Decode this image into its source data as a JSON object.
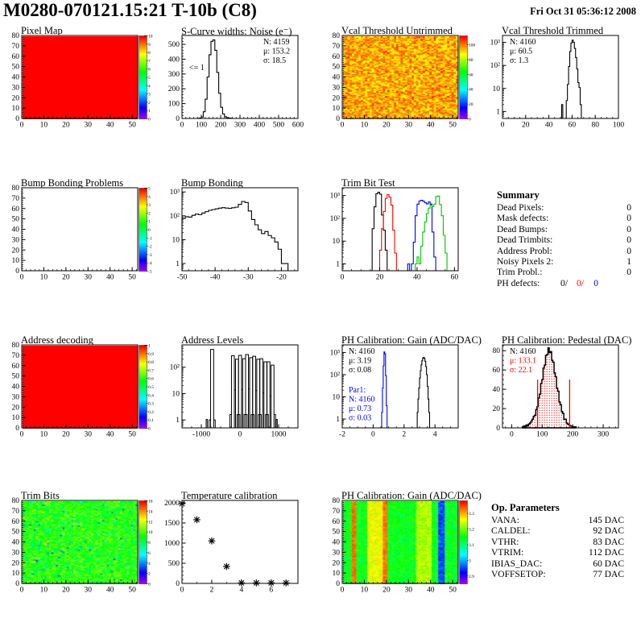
{
  "page": {
    "title": "M0280-070121.15:21 T-10b (C8)",
    "date": "Fri Oct 31 05:36:12 2008"
  },
  "colors": {
    "black": "#000000",
    "red": "#ff0000",
    "blue": "#0000ff",
    "green": "#00c300"
  },
  "summary": {
    "title": "Summary",
    "rows": [
      {
        "label": "Dead Pixels:",
        "value": "0"
      },
      {
        "label": "Mask defects:",
        "value": "0"
      },
      {
        "label": "Dead Bumps:",
        "value": "0"
      },
      {
        "label": "Dead Trimbits:",
        "value": "0"
      },
      {
        "label": "Address Probl:",
        "value": "0"
      },
      {
        "label": "Noisy Pixels 2:",
        "value": "1"
      },
      {
        "label": "Trim Probl.:",
        "value": "0"
      }
    ],
    "ph_defects": {
      "label": "PH defects:",
      "parts": [
        {
          "text": "0/",
          "color": "#000000"
        },
        {
          "text": "0/",
          "color": "#ff0000"
        },
        {
          "text": "0",
          "color": "#0000ff"
        }
      ]
    }
  },
  "op_parameters": {
    "title": "Op. Parameters",
    "rows": [
      {
        "label": "VANA:",
        "value": "145 DAC"
      },
      {
        "label": "CALDEL:",
        "value": "92 DAC"
      },
      {
        "label": "VTHR:",
        "value": "83 DAC"
      },
      {
        "label": "VTRIM:",
        "value": "112 DAC"
      },
      {
        "label": "IBIAS_DAC:",
        "value": "60 DAC"
      },
      {
        "label": "VOFFSETOP:",
        "value": "77 DAC"
      }
    ]
  },
  "chart_data": [
    {
      "id": "pixel_map",
      "type": "heatmap",
      "title": "Pixel Map",
      "x": {
        "min": 0,
        "max": 52.5,
        "ticks": [
          0,
          10,
          20,
          30,
          40,
          50
        ],
        "minor": 2
      },
      "y": {
        "min": 0,
        "max": 80,
        "ticks": [
          0,
          10,
          20,
          30,
          40,
          50,
          60,
          70,
          80
        ],
        "minor": 2
      },
      "z": {
        "min": 0,
        "max": 10,
        "ticks": [
          "0",
          "1",
          "2",
          "3",
          "4",
          "5",
          "6",
          "7",
          "8",
          "9",
          "10"
        ]
      },
      "fill": {
        "mode": "uniform",
        "value": 10
      }
    },
    {
      "id": "scurve_noise",
      "type": "hist",
      "title": "S-Curve widths: Noise (e⁻)",
      "x": {
        "min": 0,
        "max": 600,
        "ticks": [
          0,
          100,
          200,
          300,
          400,
          500,
          600
        ],
        "minor": 20
      },
      "y": {
        "min": 0,
        "max": 560,
        "ticks": [
          0,
          100,
          200,
          300,
          400,
          500
        ],
        "minor": 20
      },
      "series": [
        {
          "color": "#000000",
          "x0": 80,
          "bw": 10,
          "counts": [
            1,
            3,
            10,
            45,
            130,
            280,
            430,
            520,
            530,
            460,
            310,
            170,
            75,
            30,
            12,
            5,
            3,
            2
          ]
        }
      ],
      "stats": [
        {
          "x": 128,
          "y": 12,
          "dy": 11.5,
          "lines": [
            {
              "text": "N: 4159",
              "color": "#000000"
            },
            {
              "text": "μ: 153.2",
              "color": "#000000"
            },
            {
              "text": "σ: 18.5",
              "color": "#000000"
            }
          ]
        }
      ],
      "notes": [
        {
          "x": 36,
          "y": 44,
          "text": "<= 1",
          "color": "#000000"
        }
      ]
    },
    {
      "id": "vcal_untrimmed",
      "type": "heatmap",
      "title": "Vcal Threshold Untrimmed",
      "x": {
        "min": 0,
        "max": 52.5,
        "ticks": [
          0,
          10,
          20,
          30,
          40,
          50
        ],
        "minor": 2
      },
      "y": {
        "min": 0,
        "max": 80,
        "ticks": [
          0,
          10,
          20,
          30,
          40,
          50,
          60,
          70,
          80
        ],
        "minor": 2
      },
      "z": {
        "min": 0,
        "max": 112,
        "ticks": [
          "0",
          "20",
          "40",
          "60",
          "80",
          "100"
        ]
      },
      "fill": {
        "mode": "noise",
        "mean": 96,
        "sd": 11,
        "outliers": [
          {
            "p": 0.02,
            "lo": 108,
            "hi": 114
          },
          {
            "p": 0.008,
            "lo": 70,
            "hi": 80
          }
        ]
      }
    },
    {
      "id": "vcal_trimmed",
      "type": "hist",
      "title": "Vcal Threshold Trimmed",
      "x": {
        "min": 0,
        "max": 100,
        "ticks": [
          0,
          20,
          40,
          60,
          80,
          100
        ],
        "minor": 5
      },
      "y": {
        "log": true,
        "min": 0.5,
        "max": 2000
      },
      "series": [
        {
          "color": "#000000",
          "x0": 51,
          "bw": 1,
          "counts": [
            2,
            0,
            0,
            0,
            3,
            15,
            90,
            400,
            950,
            1250,
            1000,
            550,
            220,
            70,
            18,
            11,
            2
          ]
        }
      ],
      "stats": [
        {
          "x": 36,
          "y": 12,
          "dy": 11.5,
          "lines": [
            {
              "text": "N: 4160",
              "color": "#000000"
            },
            {
              "text": "μ: 60.5",
              "color": "#000000"
            },
            {
              "text": "σ:  1.3",
              "color": "#000000"
            }
          ]
        }
      ]
    },
    {
      "id": "bump_problems",
      "type": "heatmap",
      "title": "Bump Bonding Problems",
      "x": {
        "min": 0,
        "max": 52.5,
        "ticks": [
          0,
          10,
          20,
          30,
          40,
          50
        ],
        "minor": 2
      },
      "y": {
        "min": 0,
        "max": 80,
        "ticks": [
          0,
          10,
          20,
          30,
          40,
          50,
          60,
          70,
          80
        ],
        "minor": 2
      },
      "z": {
        "min": -5,
        "max": 5,
        "ticks": [
          "-5",
          "-4",
          "-3",
          "-2",
          "-1",
          "0",
          "1",
          "2",
          "3",
          "4",
          "5"
        ]
      },
      "fill": {
        "mode": "none"
      }
    },
    {
      "id": "bump_bonding",
      "type": "hist",
      "title": "Bump Bonding",
      "x": {
        "min": -50,
        "max": -15,
        "ticks": [
          -50,
          -40,
          -30,
          -20
        ],
        "minor": 2
      },
      "y": {
        "log": true,
        "min": 0.5,
        "max": 1500
      },
      "series": [
        {
          "color": "#000000",
          "x0": -50,
          "bw": 1,
          "counts": [
            78,
            92,
            88,
            105,
            118,
            112,
            132,
            150,
            170,
            182,
            196,
            210,
            220,
            212,
            205,
            218,
            230,
            300,
            400,
            360,
            160,
            70,
            42,
            26,
            18,
            22,
            15,
            12,
            8,
            4,
            1,
            1
          ]
        }
      ]
    },
    {
      "id": "trim_bit_test",
      "type": "hist",
      "title": "Trim Bit Test",
      "x": {
        "min": 0,
        "max": 62,
        "ticks": [
          0,
          20,
          40,
          60
        ],
        "minor": 5
      },
      "y": {
        "log": true,
        "min": 0.5,
        "max": 2200
      },
      "series": [
        {
          "color": "#000000",
          "x0": 16,
          "bw": 1,
          "baseline": true,
          "counts": [
            35,
            320,
            1200,
            1400,
            1150,
            140,
            30,
            4
          ]
        },
        {
          "color": "#ff0000",
          "x0": 20,
          "bw": 1,
          "baseline": true,
          "counts": [
            4,
            35,
            200,
            750,
            1100,
            850,
            380,
            30,
            3
          ]
        },
        {
          "color": "#0000ff",
          "x0": 35,
          "bw": 1,
          "baseline": true,
          "counts": [
            1,
            0,
            1,
            9,
            130,
            420,
            580,
            620,
            560,
            480,
            430,
            520,
            420,
            25,
            2
          ]
        },
        {
          "color": "#00c300",
          "x0": 39,
          "bw": 1,
          "baseline": true,
          "counts": [
            1,
            2,
            1,
            6,
            25,
            70,
            160,
            280,
            380,
            330,
            420,
            900,
            950,
            400,
            130,
            18,
            3
          ]
        }
      ]
    },
    {
      "id": "address_decoding",
      "type": "heatmap",
      "title": "Address decoding",
      "x": {
        "min": 0,
        "max": 52.5,
        "ticks": [
          0,
          10,
          20,
          30,
          40,
          50
        ],
        "minor": 2
      },
      "y": {
        "min": 0,
        "max": 80,
        "ticks": [
          0,
          10,
          20,
          30,
          40,
          50,
          60,
          70,
          80
        ],
        "minor": 2
      },
      "z": {
        "min": 0,
        "max": 1,
        "ticks": [
          "0",
          "0.1",
          "0.2",
          "0.3",
          "0.4",
          "0.5",
          "0.6",
          "0.7",
          "0.8",
          "0.9",
          "1"
        ]
      },
      "fill": {
        "mode": "uniform",
        "value": 1
      }
    },
    {
      "id": "address_levels",
      "type": "spikes",
      "title": "Address Levels",
      "x": {
        "min": -1500,
        "max": 1500,
        "ticks": [
          -1000,
          0,
          1000
        ],
        "minor": 250
      },
      "y": {
        "log": true,
        "min": 0.5,
        "max": 700
      },
      "groups": [
        {
          "c": -720,
          "h1": 470,
          "h2": 0
        },
        {
          "c": -130,
          "h1": 270,
          "h2": 200
        },
        {
          "c": 55,
          "h1": 280,
          "h2": 210
        },
        {
          "c": 235,
          "h1": 300,
          "h2": 230
        },
        {
          "c": 420,
          "h1": 260,
          "h2": 200
        },
        {
          "c": 605,
          "h1": 210,
          "h2": 160
        },
        {
          "c": 790,
          "h1": 160,
          "h2": 120
        }
      ],
      "extras": [
        {
          "x": -860,
          "w": 30,
          "h": 1.05
        },
        {
          "x": 950,
          "w": 30,
          "h": 1.05
        }
      ]
    },
    {
      "id": "ph_gain_hist",
      "type": "hist",
      "title": "PH Calibration: Gain (ADC/DAC)",
      "x": {
        "min": -2,
        "max": 5.5,
        "ticks": [
          -2,
          0,
          2,
          4
        ],
        "minor": 0.5
      },
      "y": {
        "log": true,
        "min": 0.4,
        "max": 2200
      },
      "series": [
        {
          "color": "#000000",
          "x0": 2.85,
          "bw": 0.05,
          "counts": [
            2,
            8,
            25,
            70,
            150,
            280,
            420,
            560,
            600,
            540,
            400,
            230,
            100,
            30,
            8,
            2
          ]
        },
        {
          "color": "#0000ff",
          "x0": 0.55,
          "bw": 0.05,
          "baseline": true,
          "counts": [
            2,
            25,
            250,
            1050,
            850,
            90,
            4
          ]
        }
      ],
      "stats": [
        {
          "x": 35,
          "y": 12,
          "dy": 11.5,
          "lines": [
            {
              "text": "N: 4160",
              "color": "#000000"
            },
            {
              "text": "μ: 3.19",
              "color": "#000000"
            },
            {
              "text": "σ: 0.08",
              "color": "#000000"
            }
          ]
        },
        {
          "x": 35,
          "y": 60,
          "dy": 11.5,
          "lines": [
            {
              "text": "Par1:",
              "color": "#0000ff"
            },
            {
              "text": "N: 4160",
              "color": "#0000ff"
            },
            {
              "text": "μ: 0.73",
              "color": "#0000ff"
            },
            {
              "text": "σ: 0.03",
              "color": "#0000ff"
            }
          ]
        }
      ]
    },
    {
      "id": "ph_pedestal",
      "type": "hist_filled",
      "title": "PH Calibration: Pedestal (DAC)",
      "x": {
        "min": -30,
        "max": 350,
        "ticks": [
          0,
          100,
          200,
          300
        ],
        "minor": 20
      },
      "y": {
        "min": 0,
        "max": 86,
        "ticks": [
          0,
          20,
          40,
          60,
          80
        ],
        "minor": 5
      },
      "bins": {
        "x0": 35,
        "bw": 4,
        "counts": [
          1,
          2,
          1,
          3,
          2,
          4,
          5,
          7,
          9,
          12,
          13,
          19,
          22,
          31,
          35,
          46,
          50,
          62,
          65,
          75,
          76,
          83,
          78,
          79,
          70,
          68,
          57,
          53,
          41,
          38,
          27,
          24,
          17,
          15,
          9,
          9,
          5,
          4,
          3,
          2,
          2,
          1,
          1,
          1
        ]
      },
      "vlines": [
        {
          "x": 85,
          "h": 50
        },
        {
          "x": 190,
          "h": 50
        }
      ],
      "stats": [
        {
          "x": 36,
          "y": 12,
          "dy": 11.5,
          "lines": [
            {
              "text": "N: 4160",
              "color": "#000000"
            },
            {
              "text": "μ: 133.1",
              "color": "#ff0000"
            },
            {
              "text": "σ: 22.1",
              "color": "#ff0000"
            }
          ]
        }
      ]
    },
    {
      "id": "trim_bits",
      "type": "heatmap",
      "title": "Trim Bits",
      "x": {
        "min": 0,
        "max": 52.5,
        "ticks": [
          0,
          10,
          20,
          30,
          40,
          50
        ],
        "minor": 2
      },
      "y": {
        "min": 0,
        "max": 80,
        "ticks": [
          0,
          10,
          20,
          30,
          40,
          50,
          60,
          70,
          80
        ],
        "minor": 2
      },
      "z": {
        "min": 0,
        "max": 16,
        "ticks": [
          "0",
          "2",
          "4",
          "6",
          "8",
          "10",
          "12",
          "14",
          "16"
        ]
      },
      "fill": {
        "mode": "noise",
        "mean": 9.4,
        "sd": 1.7,
        "outliers": [
          {
            "p": 0.015,
            "lo": 12,
            "hi": 14
          },
          {
            "p": 0.02,
            "lo": 3,
            "hi": 6
          }
        ]
      }
    },
    {
      "id": "temp_calibration",
      "type": "scatter",
      "title": "Temperature calibration",
      "x": {
        "min": 0,
        "max": 7.8,
        "ticks": [
          0,
          2,
          4,
          6
        ],
        "minor": 1
      },
      "y": {
        "min": 0,
        "max": 2060,
        "ticks": [
          0,
          500,
          1000,
          1500,
          2000
        ],
        "minor": 100
      },
      "points": [
        [
          0,
          1980
        ],
        [
          1,
          1580
        ],
        [
          2,
          1055
        ],
        [
          3,
          420
        ],
        [
          4,
          12
        ],
        [
          5,
          12
        ],
        [
          6,
          12
        ],
        [
          7,
          12
        ]
      ]
    },
    {
      "id": "ph_gain_map",
      "type": "heatmap",
      "title": "PH Calibration: Gain (ADC/DAC)",
      "x": {
        "min": 0,
        "max": 52.5,
        "ticks": [
          0,
          10,
          20,
          30,
          40,
          50
        ],
        "minor": 2
      },
      "y": {
        "min": 0,
        "max": 80,
        "ticks": [
          0,
          10,
          20,
          30,
          40,
          50,
          60,
          70,
          80
        ],
        "minor": 2
      },
      "z": {
        "min": 2.85,
        "max": 3.38,
        "ticks": [
          "2.9",
          "3",
          "3.1",
          "3.2",
          "3.3"
        ]
      },
      "fill": {
        "mode": "noise",
        "mean": 3.145,
        "sd": 0.038,
        "stripes": [
          {
            "c0": 4,
            "c1": 5,
            "m": 3.33,
            "sd": 0.02
          },
          {
            "c0": 11,
            "c1": 17,
            "m": 3.26,
            "sd": 0.03
          },
          {
            "c0": 18,
            "c1": 19,
            "m": 3.33,
            "sd": 0.02
          },
          {
            "c0": 33,
            "c1": 39,
            "m": 3.23,
            "sd": 0.03
          },
          {
            "c0": 43,
            "c1": 45,
            "m": 2.96,
            "sd": 0.03
          }
        ]
      }
    }
  ]
}
